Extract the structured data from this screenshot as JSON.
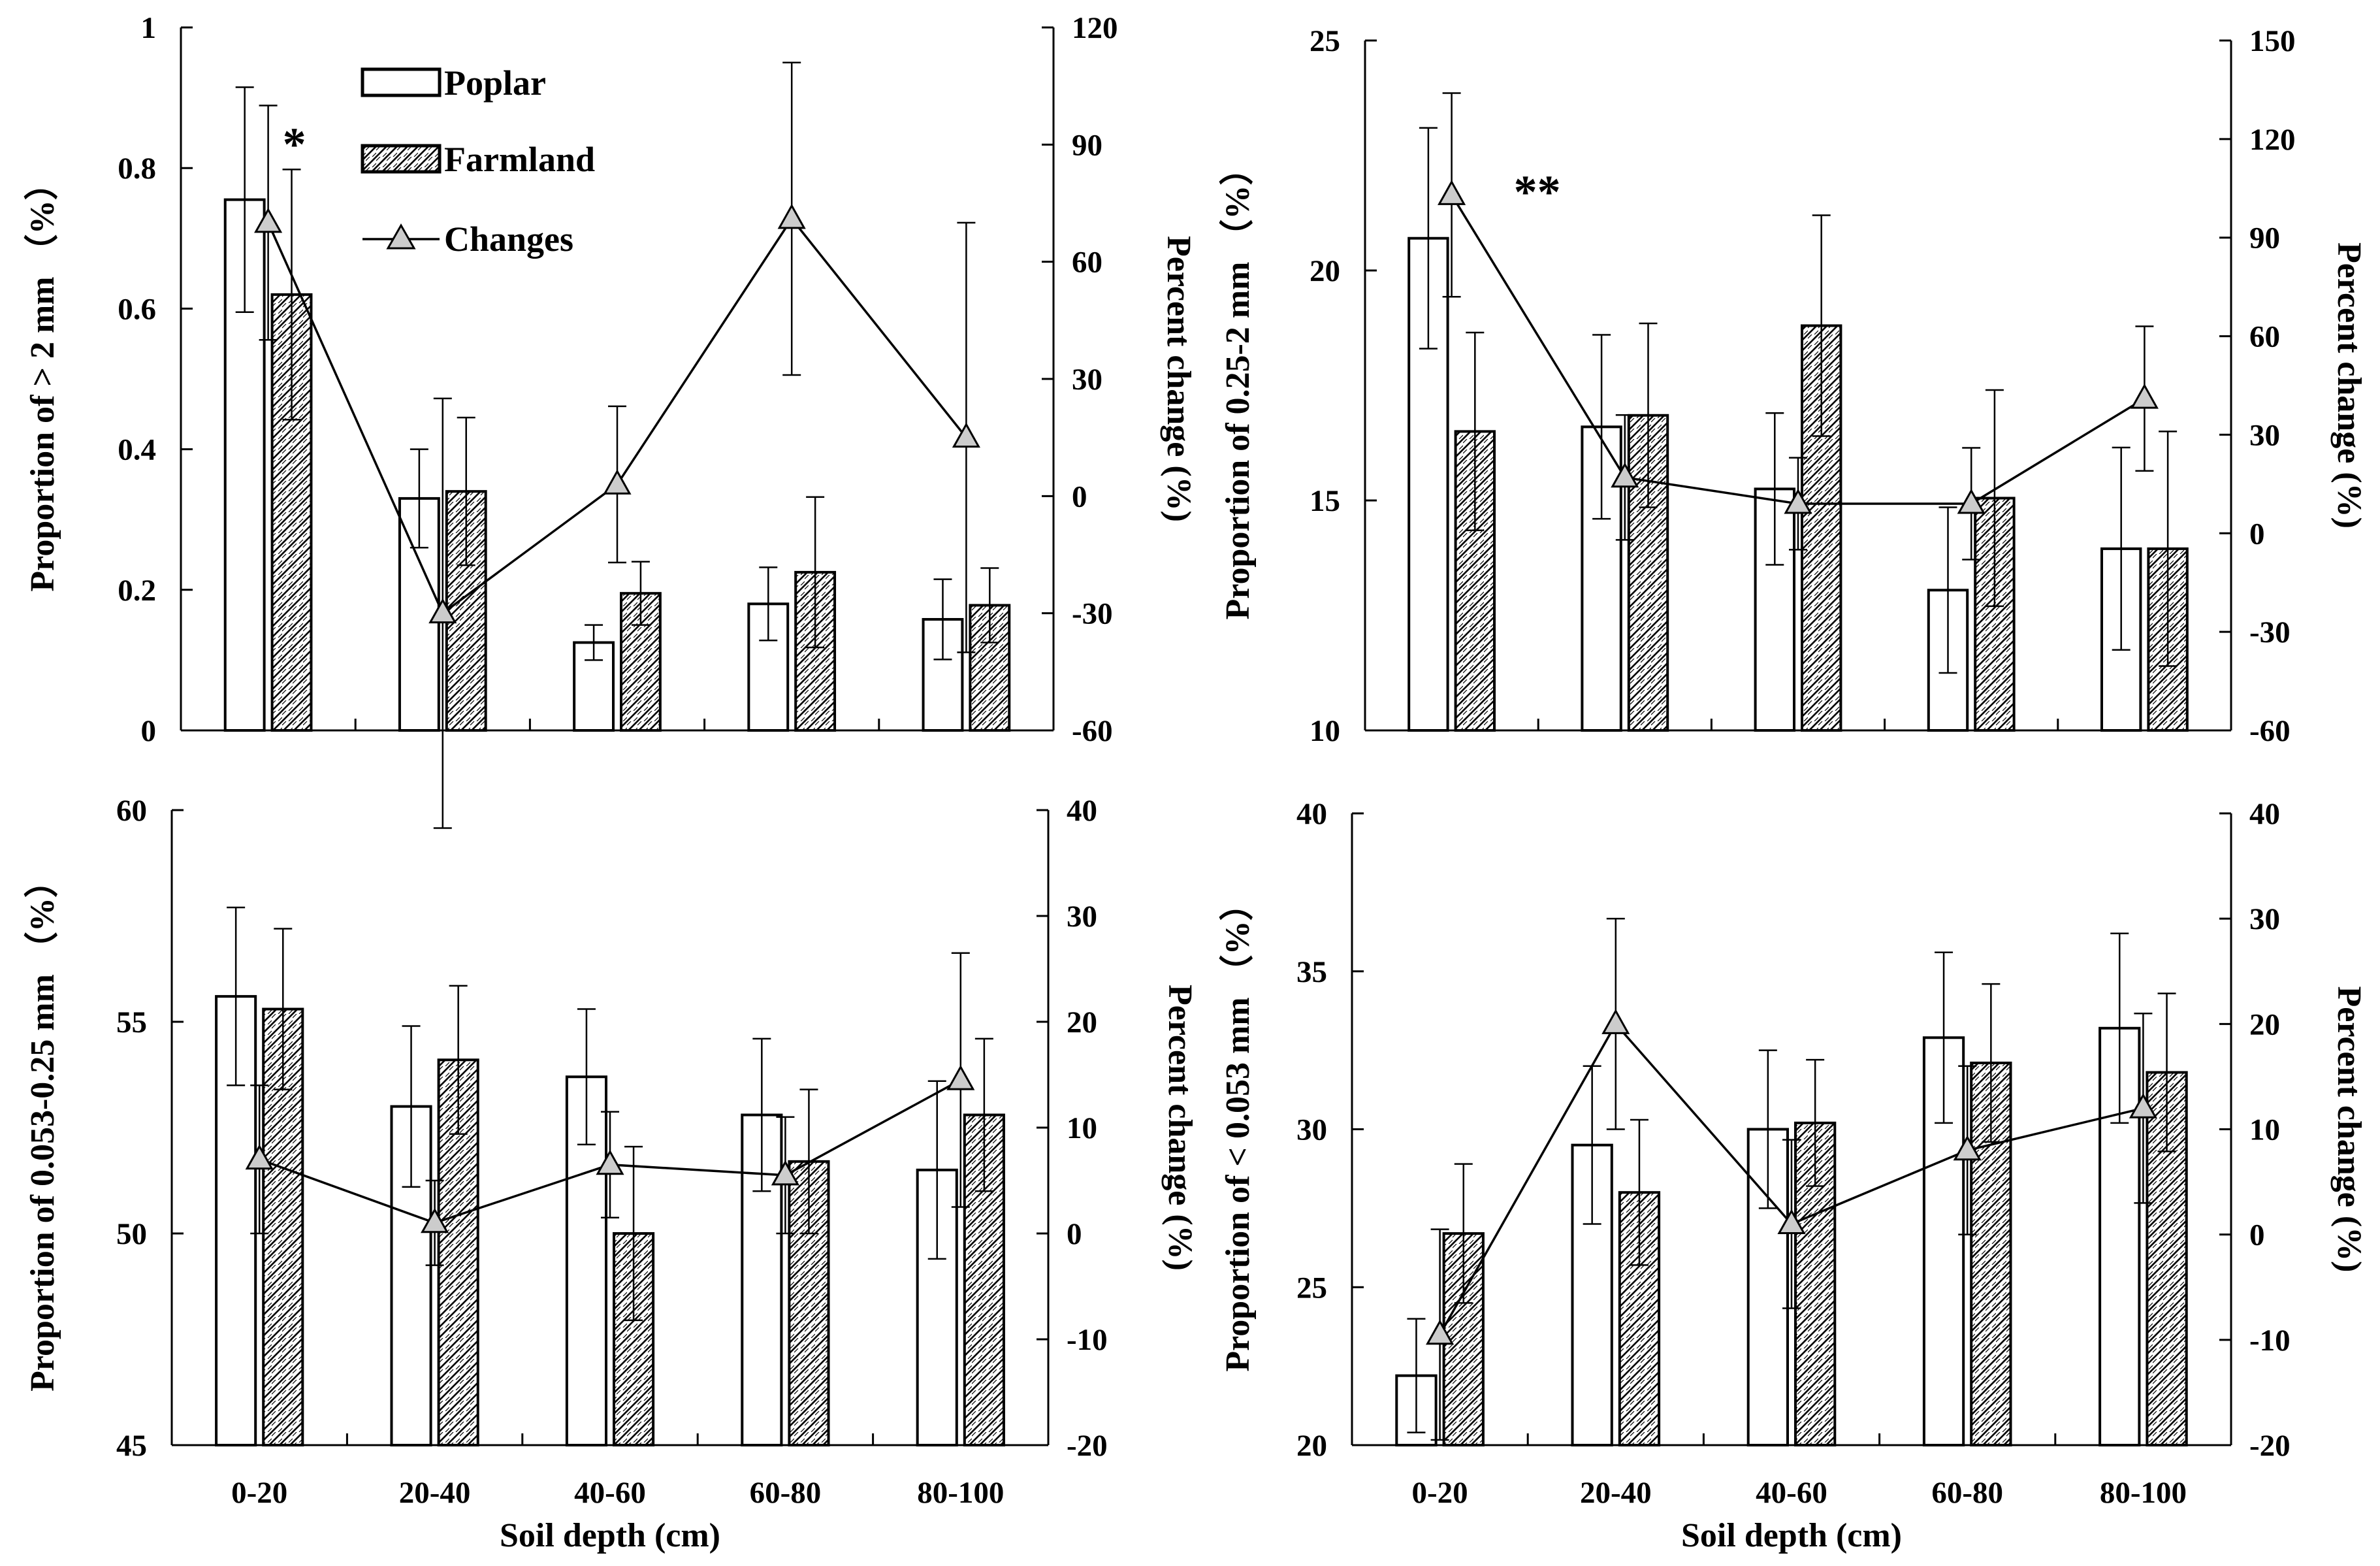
{
  "figure": {
    "legend": {
      "poplar": "Poplar",
      "farmland": "Farmland",
      "changes": "Changes"
    },
    "depth_title": "Soil depth (cm)"
  },
  "chart_data": [
    {
      "id": "panel-a",
      "type": "bar",
      "title": "",
      "categories": [
        "0-20",
        "20-40",
        "40-60",
        "60-80",
        "80-100"
      ],
      "ylabel": "Proportion of > 2 mm （%）",
      "y2label": "Percent change (%)",
      "ylim": [
        0,
        1
      ],
      "yticks": [
        "0",
        "0.2",
        "0.4",
        "0.6",
        "0.8",
        "1"
      ],
      "y2lim": [
        -60,
        120
      ],
      "y2ticks": [
        "-60",
        "-30",
        "0",
        "30",
        "60",
        "90",
        "120"
      ],
      "xlabel": "",
      "show_x_ticks": false,
      "series": [
        {
          "name": "Poplar",
          "values": [
            0.755,
            0.33,
            0.125,
            0.18,
            0.158
          ],
          "errors": [
            0.16,
            0.07,
            0.025,
            0.052,
            0.057
          ]
        },
        {
          "name": "Farmland",
          "values": [
            0.62,
            0.34,
            0.195,
            0.225,
            0.178
          ],
          "errors": [
            0.178,
            0.105,
            0.045,
            0.107,
            0.053
          ]
        }
      ],
      "changes": {
        "name": "Changes",
        "values": [
          70,
          -30,
          3,
          71,
          15
        ],
        "errors": [
          30,
          55,
          20,
          40,
          55
        ]
      },
      "significance": [
        {
          "category": "0-20",
          "label": "*"
        }
      ]
    },
    {
      "id": "panel-b",
      "type": "bar",
      "title": "",
      "categories": [
        "0-20",
        "20-40",
        "40-60",
        "60-80",
        "80-100"
      ],
      "ylabel": "Proportion of 0.25-2 mm （%）",
      "y2label": "Percent change (%)",
      "ylim": [
        10,
        25
      ],
      "yticks": [
        "10",
        "15",
        "20",
        "25"
      ],
      "y2lim": [
        -60,
        150
      ],
      "y2ticks": [
        "-60",
        "-30",
        "0",
        "30",
        "60",
        "90",
        "120",
        "150"
      ],
      "xlabel": "",
      "show_x_ticks": false,
      "series": [
        {
          "name": "Poplar",
          "values": [
            20.7,
            16.6,
            15.25,
            13.05,
            13.95
          ],
          "errors": [
            2.4,
            2.0,
            1.65,
            1.8,
            2.2
          ]
        },
        {
          "name": "Farmland",
          "values": [
            16.5,
            16.85,
            18.8,
            15.05,
            13.95
          ],
          "errors": [
            2.15,
            2.0,
            2.4,
            2.35,
            2.55
          ]
        }
      ],
      "changes": {
        "name": "Changes",
        "values": [
          103,
          17,
          9,
          9,
          41
        ],
        "errors": [
          31,
          19,
          14,
          17,
          22
        ]
      },
      "significance": [
        {
          "category": "0-20",
          "label": "**"
        }
      ]
    },
    {
      "id": "panel-c",
      "type": "bar",
      "title": "",
      "categories": [
        "0-20",
        "20-40",
        "40-60",
        "60-80",
        "80-100"
      ],
      "ylabel": "Proportion of 0.053-0.25 mm （%）",
      "y2label": "Percent change (%)",
      "ylim": [
        45,
        60
      ],
      "yticks": [
        "45",
        "50",
        "55",
        "60"
      ],
      "y2lim": [
        -20,
        40
      ],
      "y2ticks": [
        "-20",
        "-10",
        "0",
        "10",
        "20",
        "30",
        "40"
      ],
      "xlabel": "Soil depth (cm)",
      "show_x_ticks": true,
      "series": [
        {
          "name": "Poplar",
          "values": [
            55.6,
            53.0,
            53.7,
            52.8,
            51.5
          ],
          "errors": [
            2.1,
            1.9,
            1.6,
            1.8,
            2.1
          ]
        },
        {
          "name": "Farmland",
          "values": [
            55.3,
            54.1,
            50.0,
            51.7,
            52.8
          ],
          "errors": [
            1.9,
            1.75,
            2.05,
            1.7,
            1.8
          ]
        }
      ],
      "changes": {
        "name": "Changes",
        "values": [
          7,
          1,
          6.5,
          5.5,
          14.5
        ],
        "errors": [
          7,
          4,
          5,
          5.5,
          12
        ]
      },
      "significance": []
    },
    {
      "id": "panel-d",
      "type": "bar",
      "title": "",
      "categories": [
        "0-20",
        "20-40",
        "40-60",
        "60-80",
        "80-100"
      ],
      "ylabel": "Proportion of < 0.053 mm （%）",
      "y2label": "Percent change (%)",
      "ylim": [
        20,
        40
      ],
      "yticks": [
        "20",
        "25",
        "30",
        "35",
        "40"
      ],
      "y2lim": [
        -20,
        40
      ],
      "y2ticks": [
        "-20",
        "-10",
        "0",
        "10",
        "20",
        "30",
        "40"
      ],
      "xlabel": "Soil depth (cm)",
      "show_x_ticks": true,
      "series": [
        {
          "name": "Poplar",
          "values": [
            22.2,
            29.5,
            30.0,
            32.9,
            33.2
          ],
          "errors": [
            1.8,
            2.5,
            2.5,
            2.7,
            3.0
          ]
        },
        {
          "name": "Farmland",
          "values": [
            26.7,
            28.0,
            30.2,
            32.1,
            31.8
          ],
          "errors": [
            2.2,
            2.3,
            2.0,
            2.5,
            2.5
          ]
        }
      ],
      "changes": {
        "name": "Changes",
        "values": [
          -9.5,
          20,
          1,
          8,
          12
        ],
        "errors": [
          10,
          10,
          8,
          8,
          9
        ]
      },
      "significance": []
    }
  ]
}
